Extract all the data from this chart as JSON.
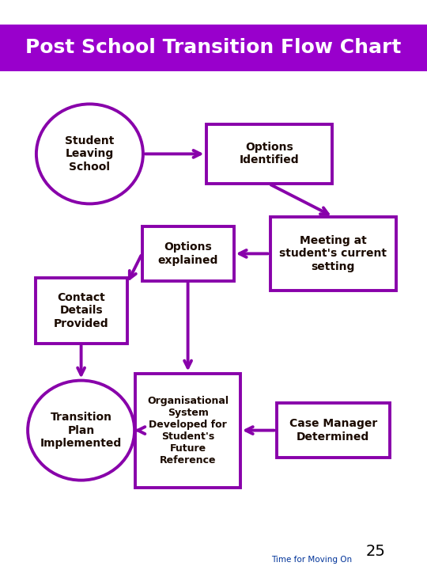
{
  "title": "Post School Transition Flow Chart",
  "title_bg": "#9900CC",
  "title_color": "#FFFFFF",
  "title_fontsize": 18,
  "bg_color": "#FFFFFF",
  "purple": "#8800AA",
  "text_color": "#1a0a00",
  "footer_number": "25",
  "footer_text": "Time for Moving On",
  "footer_text_color": "#003399",
  "fig_w": 5.4,
  "fig_h": 7.2,
  "dpi": 100
}
